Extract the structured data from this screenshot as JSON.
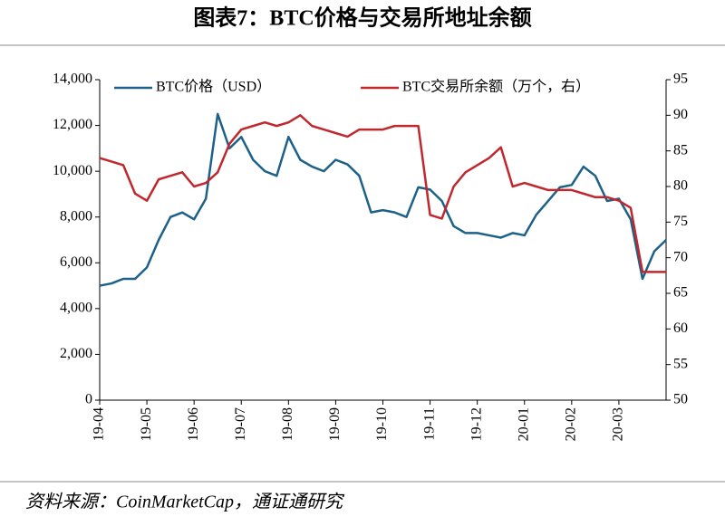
{
  "chart_data": {
    "type": "line",
    "title": "图表7：BTC价格与交易所地址余额",
    "source": "资料来源：CoinMarketCap，通证通研究",
    "categories": [
      "19-04",
      null,
      null,
      null,
      "19-05",
      null,
      null,
      null,
      "19-06",
      null,
      null,
      null,
      "19-07",
      null,
      null,
      null,
      "19-08",
      null,
      null,
      null,
      "19-09",
      null,
      null,
      null,
      "19-10",
      null,
      null,
      null,
      "19-11",
      null,
      null,
      null,
      "19-12",
      null,
      null,
      null,
      "20-01",
      null,
      null,
      null,
      "20-02",
      null,
      null,
      null,
      "20-03",
      null,
      null,
      null,
      null
    ],
    "series": [
      {
        "name": "BTC价格（USD）",
        "color": "#1d6189",
        "values": [
          5000,
          5100,
          5300,
          5300,
          5800,
          7000,
          8000,
          8200,
          7900,
          8800,
          12500,
          11000,
          11500,
          10500,
          10000,
          9800,
          11500,
          10500,
          10200,
          10000,
          10500,
          10300,
          9800,
          8200,
          8300,
          8200,
          8000,
          9300,
          9200,
          8700,
          7600,
          7300,
          7300,
          7200,
          7100,
          7300,
          7200,
          8100,
          8700,
          9300,
          9400,
          10200,
          9800,
          8700,
          8800,
          7900,
          5300,
          6500,
          7000
        ]
      },
      {
        "name": "BTC交易所余额（万个，右）",
        "color": "#c0282d",
        "axis": "y2",
        "values": [
          84,
          83.5,
          83,
          79,
          78,
          81,
          81.5,
          82,
          80,
          80.5,
          82,
          86,
          88,
          88.5,
          89,
          88.5,
          89,
          90,
          88.5,
          88,
          87.5,
          87,
          88,
          88,
          88,
          88.5,
          88.5,
          88.5,
          76,
          75.5,
          80,
          82,
          83,
          84,
          85.5,
          80,
          80.5,
          80,
          79.5,
          79.5,
          79.5,
          79,
          78.5,
          78.5,
          78,
          77,
          68,
          68,
          68
        ]
      }
    ],
    "ylim": [
      0,
      14000
    ],
    "yticks": [
      0,
      {
        "value": 2000,
        "label": "2,000"
      },
      {
        "value": 4000,
        "label": "4,000"
      },
      {
        "value": 6000,
        "label": "6,000"
      },
      {
        "value": 8000,
        "label": "8,000"
      },
      {
        "value": 10000,
        "label": "10,000"
      },
      {
        "value": 12000,
        "label": "12,000"
      },
      {
        "value": 14000,
        "label": "14,000"
      }
    ],
    "y2lim": [
      50,
      95
    ],
    "y2ticks": [
      50,
      55,
      60,
      65,
      70,
      75,
      80,
      85,
      90,
      95
    ],
    "legend": "top"
  }
}
